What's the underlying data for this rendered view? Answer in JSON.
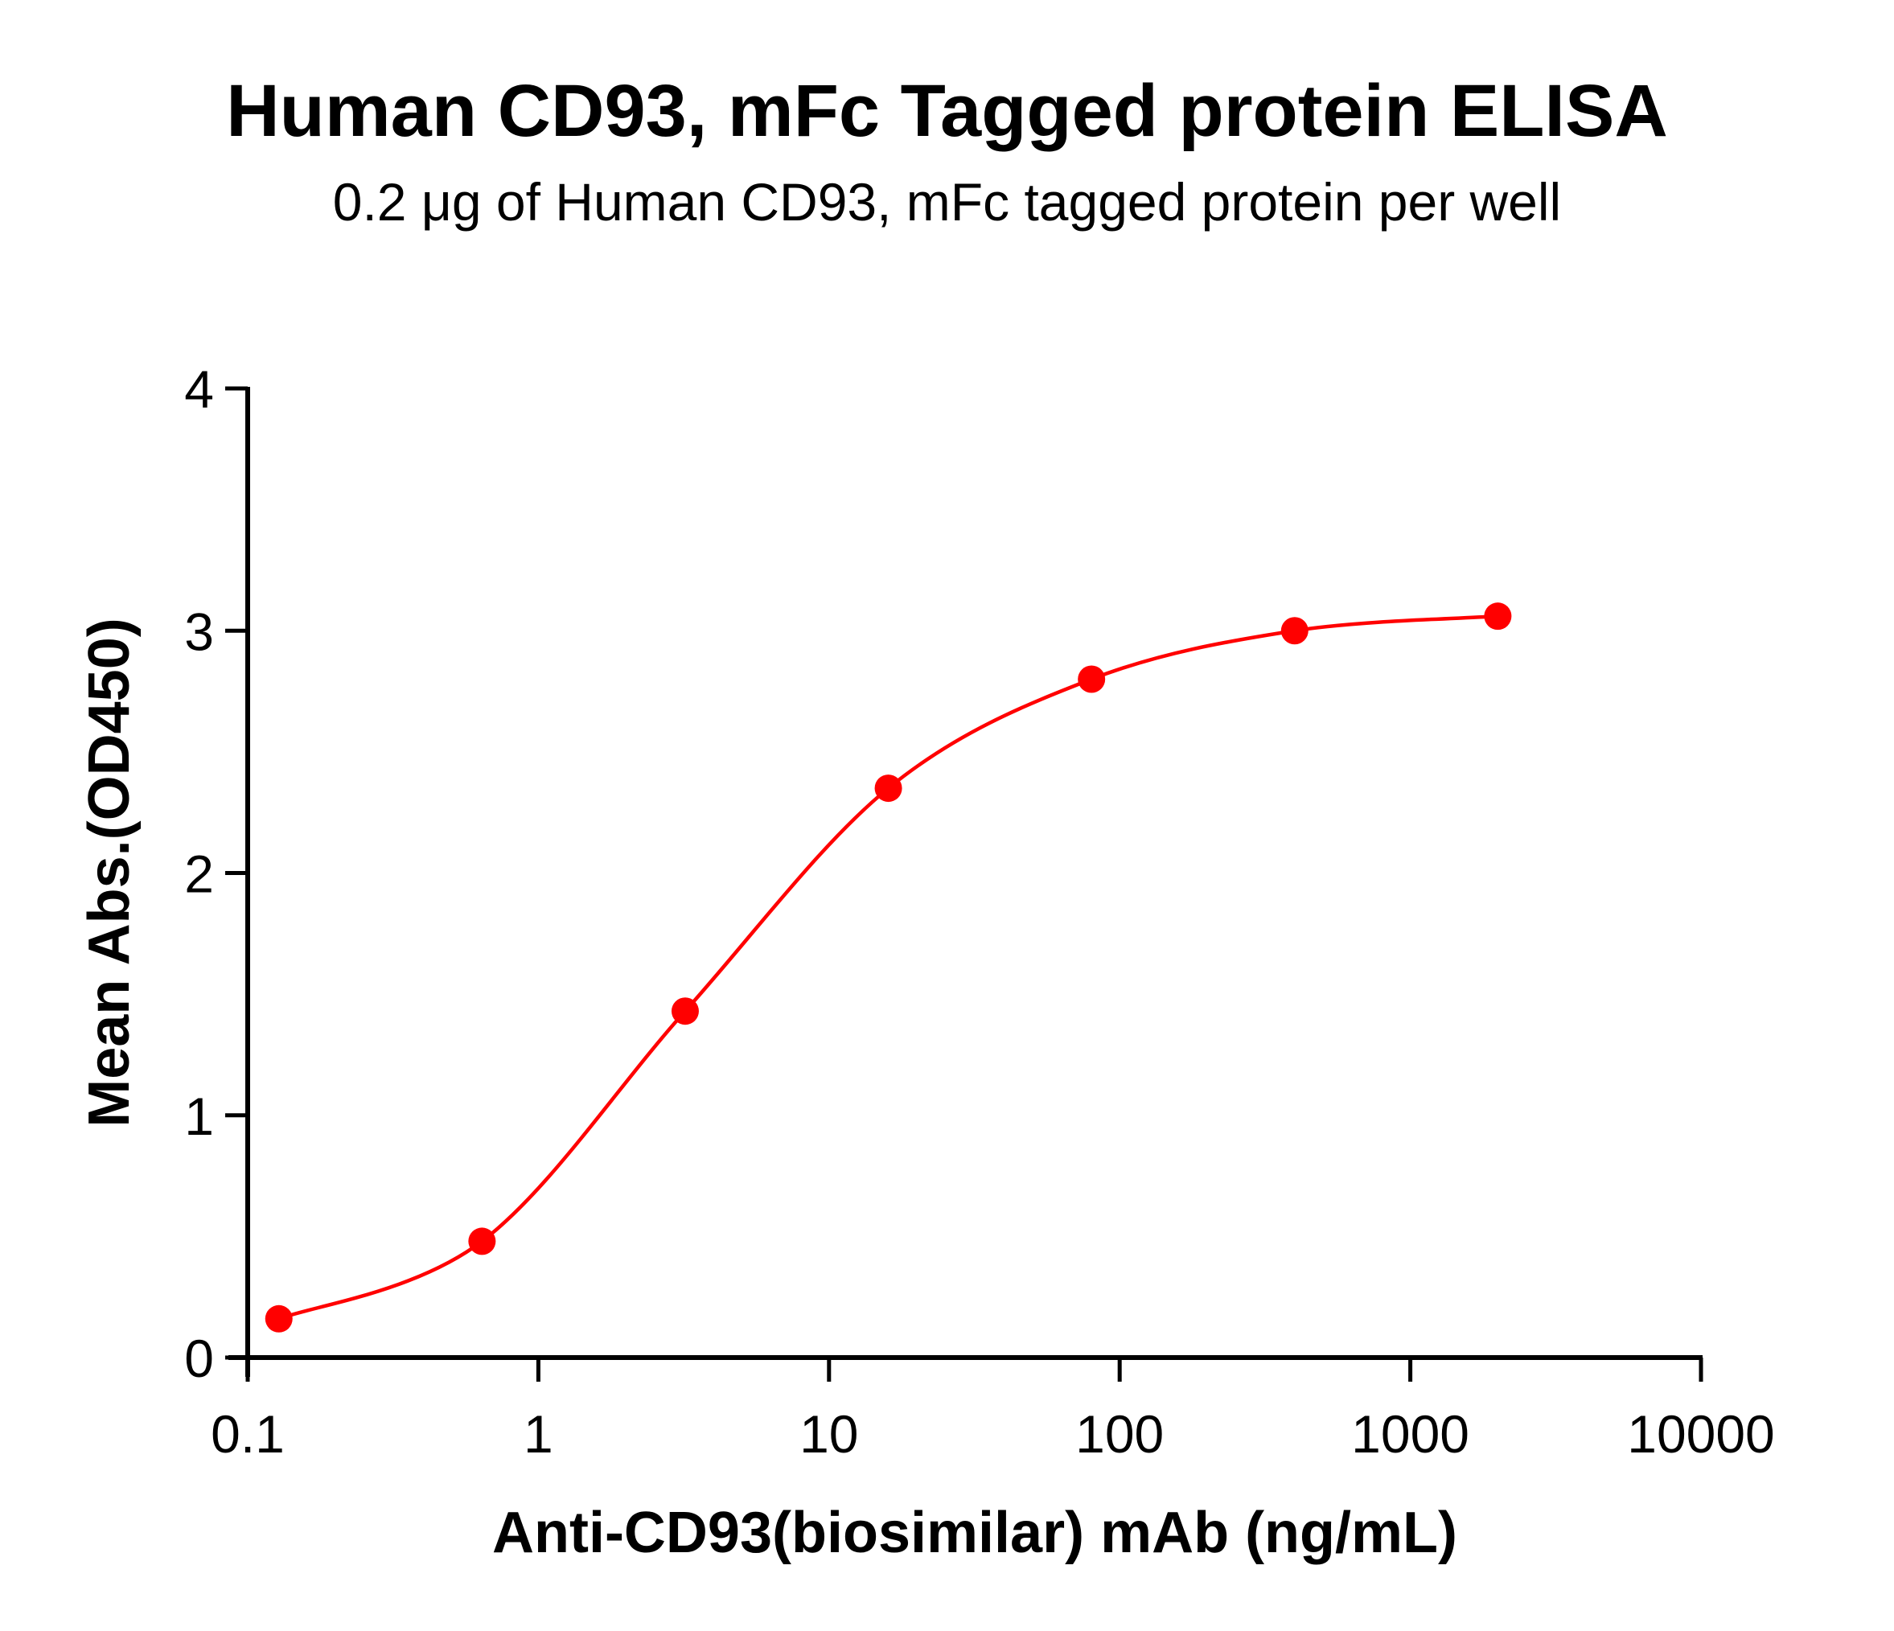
{
  "title": "Human CD93, mFc Tagged protein ELISA",
  "subtitle": "0.2 μg of Human CD93, mFc tagged protein per well",
  "colors": {
    "series": "#ff0000",
    "axis": "#000000"
  },
  "chart_data": {
    "type": "scatter",
    "title": "Human CD93, mFc Tagged protein ELISA",
    "subtitle": "0.2 μg of Human CD93, mFc tagged protein per well",
    "xlabel": "Anti-CD93(biosimilar) mAb (ng/mL)",
    "ylabel": "Mean Abs.(OD450)",
    "xscale": "log",
    "xlim": [
      0.1,
      10000
    ],
    "ylim": [
      0,
      4
    ],
    "xticks": [
      "0.1",
      "1",
      "10",
      "100",
      "1000",
      "10000"
    ],
    "yticks": [
      "0",
      "1",
      "2",
      "3",
      "4"
    ],
    "grid": false,
    "legend": null,
    "series": [
      {
        "name": "Anti-CD93 (biosimilar) mAb",
        "color": "#ff0000",
        "marker": "circle",
        "fit": "4PL sigmoid curve",
        "x": [
          0.128,
          0.64,
          3.2,
          16,
          80,
          400,
          2000
        ],
        "y": [
          0.16,
          0.48,
          1.43,
          2.35,
          2.8,
          3.0,
          3.06
        ]
      }
    ]
  }
}
